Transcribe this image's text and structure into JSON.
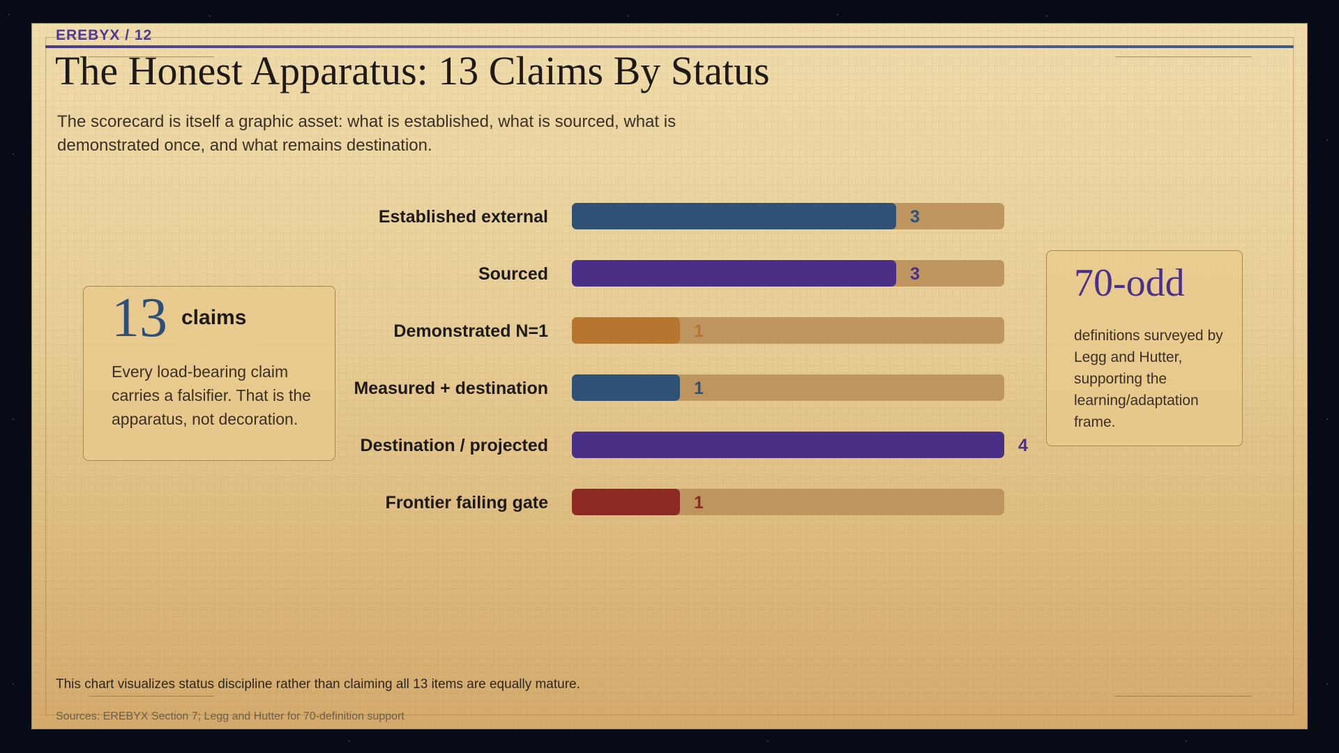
{
  "header": {
    "kicker": "EREBYX / 12",
    "title": "The Honest Apparatus: 13 Claims By Status",
    "subtitle": "The scorecard is itself a graphic asset: what is established, what is sourced, what is demonstrated once, and what remains destination."
  },
  "left_card": {
    "number": "13",
    "unit": "claims",
    "text": "Every load-bearing claim carries a falsifier. That is the apparatus, not decoration."
  },
  "right_card": {
    "number": "70-odd",
    "text": "definitions surveyed by Legg and Hutter, supporting the learning/adaptation frame."
  },
  "footnote": "This chart visualizes status discipline rather than claiming all 13 items are equally mature.",
  "source": "Sources: EREBYX Section 7; Legg and Hutter for 70-definition support",
  "colors": {
    "track": "#bf955f",
    "established": "#2f5176",
    "sourced": "#4a2f87",
    "demonstrated": "#b67630",
    "measured": "#2f5176",
    "destination": "#4a2f87",
    "frontier": "#8b2a20"
  },
  "chart_data": {
    "type": "bar",
    "orientation": "horizontal",
    "categories": [
      "Established external",
      "Sourced",
      "Demonstrated N=1",
      "Measured + destination",
      "Destination / projected",
      "Frontier failing gate"
    ],
    "values": [
      3,
      3,
      1,
      1,
      4,
      1
    ],
    "bar_colors": [
      "#2f5176",
      "#4a2f87",
      "#b67630",
      "#2f5176",
      "#4a2f87",
      "#8b2a20"
    ],
    "xlim": [
      0,
      4
    ],
    "grid": false,
    "legend": "none"
  }
}
